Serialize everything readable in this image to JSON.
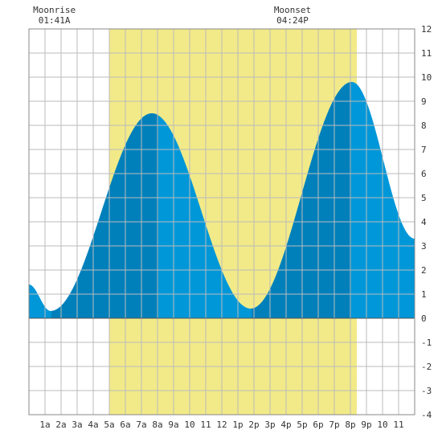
{
  "chart_data": {
    "type": "area",
    "title": "",
    "xlabel": "",
    "ylabel": "",
    "x_range_hours": [
      0,
      24
    ],
    "ylim": [
      -4,
      12
    ],
    "y_ticks": [
      -4,
      -3,
      -2,
      -1,
      0,
      1,
      2,
      3,
      4,
      5,
      6,
      7,
      8,
      9,
      10,
      11,
      12
    ],
    "x_tick_labels": [
      "1a",
      "2a",
      "3a",
      "4a",
      "5a",
      "6a",
      "7a",
      "8a",
      "9a",
      "10",
      "11",
      "12",
      "1p",
      "2p",
      "3p",
      "4p",
      "5p",
      "6p",
      "7p",
      "8p",
      "9p",
      "10",
      "11"
    ],
    "grid": true,
    "tide_extrema": [
      {
        "hour": 0.0,
        "height": 1.4
      },
      {
        "hour": 1.35,
        "height": 0.3
      },
      {
        "hour": 7.65,
        "height": 8.5
      },
      {
        "hour": 13.8,
        "height": 0.4
      },
      {
        "hour": 20.1,
        "height": 9.8
      },
      {
        "hour": 24.0,
        "height": 3.3
      }
    ],
    "daylight_hours": [
      5.0,
      20.4
    ],
    "moon_up_hours": [
      1.4,
      8.05,
      13.85,
      20.05
    ],
    "annotations": [
      {
        "name": "Moonrise",
        "time": "01:41A",
        "hour": 1.68
      },
      {
        "name": "Moonset",
        "time": "04:24P",
        "hour": 16.4
      }
    ],
    "colors": {
      "daylight": "#f2ea88",
      "tide": "#0097d9",
      "tide_moon": "#0080bb",
      "grid": "#bbbbbb",
      "axis_text": "#333333"
    }
  }
}
